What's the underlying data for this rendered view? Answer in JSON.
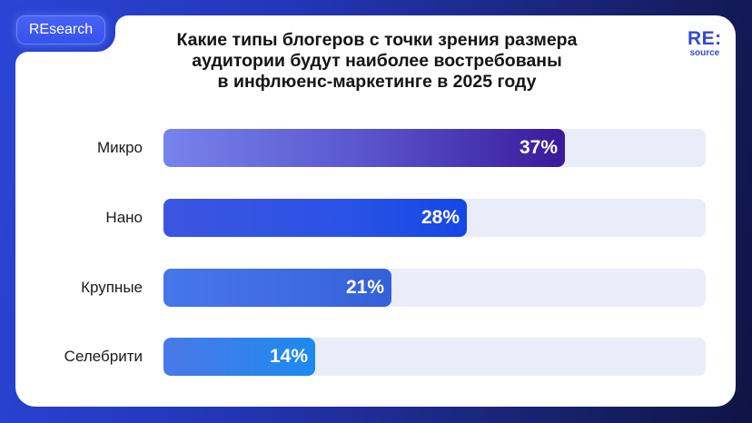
{
  "badge": {
    "label": "REsearch"
  },
  "logo": {
    "top": "RE:",
    "bottom": "source"
  },
  "title": {
    "line1": "Какие типы блогеров с точки зрения размера",
    "line2": "аудитории будут наиболее востребованы",
    "line3": "в инфлюенс-маркетинге в 2025 году"
  },
  "colors": {
    "background_left": "#2a45d6",
    "background_right": "#0f1445",
    "track": "#eaecfa",
    "bar_micro": [
      "#7783ee",
      "#3a1a9a"
    ],
    "bar_nano": [
      "#3c55e0",
      "#1547e6"
    ],
    "bar_large": [
      "#4677ea",
      "#3460d8"
    ],
    "bar_celebrity": [
      "#4a78e8",
      "#1a8aef"
    ],
    "logo": "#3348d6"
  },
  "chart_data": {
    "type": "bar",
    "orientation": "horizontal",
    "title": "Какие типы блогеров с точки зрения размера аудитории будут наиболее востребованы в инфлюенс-маркетинге в 2025 году",
    "categories": [
      "Микро",
      "Нано",
      "Крупные",
      "Селебрити"
    ],
    "values": [
      37,
      28,
      21,
      14
    ],
    "labels": [
      "37%",
      "28%",
      "21%",
      "14%"
    ],
    "unit": "%",
    "xlabel": "",
    "ylabel": "",
    "xlim": [
      0,
      50
    ],
    "grid": false,
    "legend": "none"
  }
}
